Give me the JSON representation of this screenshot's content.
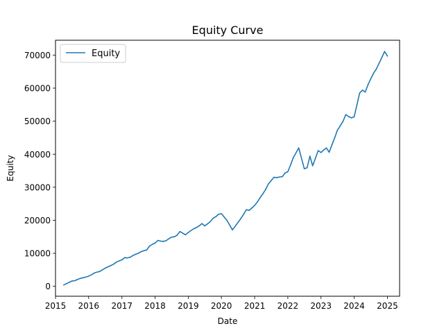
{
  "chart_data": {
    "type": "line",
    "title": "Equity Curve",
    "xlabel": "Date",
    "ylabel": "Equity",
    "xlim": [
      "2015-01-01",
      "2025-05-15"
    ],
    "ylim": [
      -3000,
      74500
    ],
    "x_ticks": [
      "2015",
      "2016",
      "2017",
      "2018",
      "2019",
      "2020",
      "2021",
      "2022",
      "2023",
      "2024",
      "2025"
    ],
    "y_ticks": [
      0,
      10000,
      20000,
      30000,
      40000,
      50000,
      60000,
      70000
    ],
    "y_tick_labels": [
      "0",
      "10000",
      "20000",
      "30000",
      "40000",
      "50000",
      "60000",
      "70000"
    ],
    "legend": {
      "position": "top-left",
      "entries": [
        "Equity"
      ]
    },
    "grid": false,
    "colors": {
      "series": "#1f77b4"
    },
    "series": [
      {
        "name": "Equity",
        "x": [
          "2015-04-01",
          "2015-05-01",
          "2015-06-01",
          "2015-07-01",
          "2015-08-01",
          "2015-09-01",
          "2015-10-01",
          "2015-11-01",
          "2015-12-01",
          "2016-01-01",
          "2016-02-01",
          "2016-03-01",
          "2016-04-01",
          "2016-05-01",
          "2016-06-01",
          "2016-07-01",
          "2016-08-01",
          "2016-09-01",
          "2016-10-01",
          "2016-11-01",
          "2016-12-01",
          "2017-01-01",
          "2017-02-01",
          "2017-03-01",
          "2017-04-01",
          "2017-05-01",
          "2017-06-01",
          "2017-07-01",
          "2017-08-01",
          "2017-09-01",
          "2017-10-01",
          "2017-11-01",
          "2017-12-01",
          "2018-01-01",
          "2018-02-01",
          "2018-03-01",
          "2018-04-01",
          "2018-05-01",
          "2018-06-01",
          "2018-07-01",
          "2018-08-01",
          "2018-09-01",
          "2018-10-01",
          "2018-11-01",
          "2018-12-01",
          "2019-01-01",
          "2019-02-01",
          "2019-03-01",
          "2019-04-01",
          "2019-05-01",
          "2019-06-01",
          "2019-07-01",
          "2019-08-01",
          "2019-09-01",
          "2019-10-01",
          "2019-11-01",
          "2019-12-01",
          "2020-01-01",
          "2020-03-01",
          "2020-05-01",
          "2020-06-01",
          "2020-08-01",
          "2020-09-01",
          "2020-10-01",
          "2020-11-01",
          "2020-12-01",
          "2021-01-01",
          "2021-02-01",
          "2021-03-01",
          "2021-04-01",
          "2021-05-01",
          "2021-06-01",
          "2021-07-01",
          "2021-08-01",
          "2021-09-01",
          "2021-10-01",
          "2021-11-01",
          "2021-12-01",
          "2022-01-01",
          "2022-02-01",
          "2022-03-01",
          "2022-05-01",
          "2022-07-01",
          "2022-08-01",
          "2022-09-01",
          "2022-10-01",
          "2022-11-01",
          "2022-12-01",
          "2023-01-01",
          "2023-02-01",
          "2023-03-01",
          "2023-04-01",
          "2023-05-01",
          "2023-06-01",
          "2023-07-01",
          "2023-08-01",
          "2023-09-01",
          "2023-10-01",
          "2023-11-01",
          "2023-12-01",
          "2024-01-01",
          "2024-02-01",
          "2024-03-01",
          "2024-04-01",
          "2024-05-01",
          "2024-06-01",
          "2024-07-01",
          "2024-08-01",
          "2024-09-01",
          "2024-10-01",
          "2024-11-01",
          "2024-12-01",
          "2025-01-01"
        ],
        "values": [
          400,
          800,
          1200,
          1600,
          1700,
          2100,
          2400,
          2600,
          2800,
          3100,
          3500,
          4000,
          4300,
          4500,
          5000,
          5500,
          5900,
          6300,
          6700,
          7300,
          7700,
          8000,
          8700,
          8600,
          8800,
          9300,
          9700,
          10000,
          10500,
          10800,
          11000,
          12200,
          12700,
          13100,
          13900,
          13700,
          13600,
          13800,
          14400,
          14900,
          15000,
          15500,
          16600,
          16100,
          15600,
          16300,
          16900,
          17400,
          17800,
          18300,
          19000,
          18300,
          18900,
          19600,
          20600,
          21100,
          21800,
          22000,
          20000,
          17100,
          18200,
          20500,
          21800,
          23200,
          23000,
          23700,
          24500,
          25600,
          26800,
          28000,
          29300,
          31000,
          32000,
          33000,
          32900,
          33100,
          33200,
          34300,
          34700,
          36800,
          38900,
          41900,
          35600,
          35900,
          39400,
          36500,
          38800,
          41100,
          40500,
          41300,
          41900,
          40600,
          42800,
          45000,
          47300,
          48600,
          50000,
          52000,
          51400,
          51000,
          51300,
          55000,
          58500,
          59400,
          58800,
          61000,
          62800,
          64500,
          65800,
          67500,
          69300,
          71100,
          69700
        ]
      }
    ]
  }
}
